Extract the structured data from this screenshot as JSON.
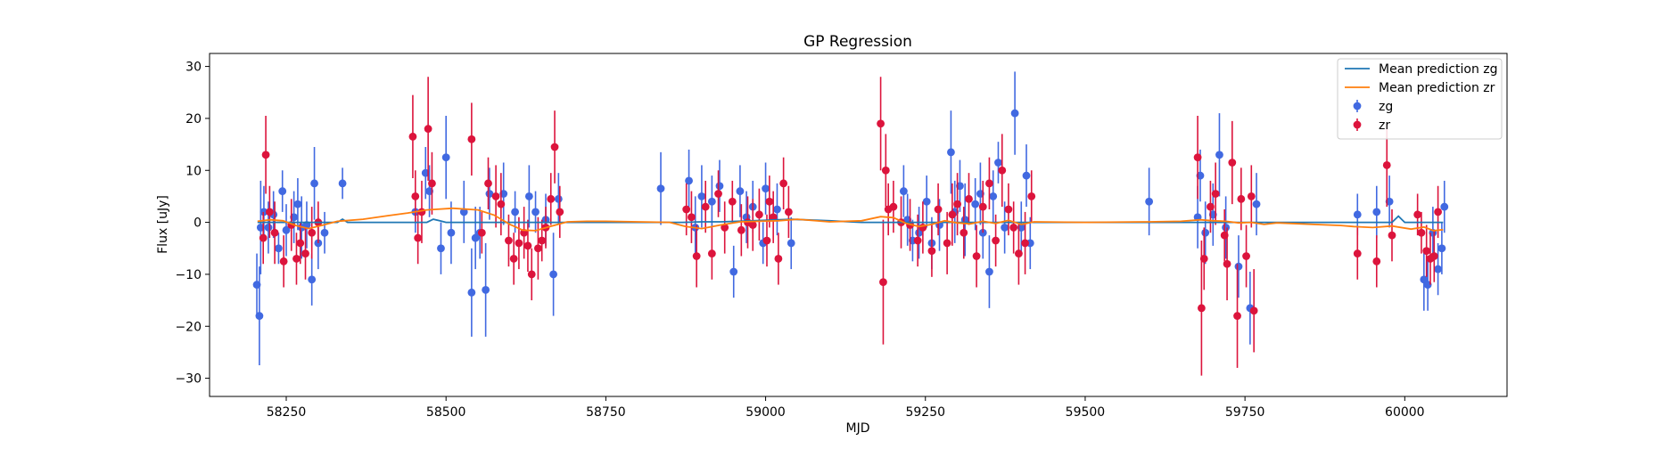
{
  "chart_data": {
    "type": "scatter",
    "title": "GP Regression",
    "xlabel": "MJD",
    "ylabel": "Flux [uJy]",
    "xlim": [
      58130,
      60160
    ],
    "ylim": [
      -33.5,
      32.5
    ],
    "x_ticks": [
      58250,
      58500,
      58750,
      59000,
      59250,
      59500,
      59750,
      60000
    ],
    "y_ticks": [
      -30,
      -20,
      -10,
      0,
      10,
      20,
      30
    ],
    "grid": false,
    "legend_position": "top-right",
    "legend": [
      {
        "label": "Mean prediction zg",
        "kind": "line",
        "color": "#1f77b4"
      },
      {
        "label": "Mean prediction zr",
        "kind": "line",
        "color": "#ff7f0e"
      },
      {
        "label": "zg",
        "kind": "errorbar",
        "color": "#4169e1"
      },
      {
        "label": "zr",
        "kind": "errorbar",
        "color": "#dc143c"
      }
    ],
    "series": [
      {
        "name": "Mean prediction zg",
        "kind": "line",
        "color": "#1f77b4",
        "x": [
          58205,
          58240,
          58280,
          58330,
          58338,
          58346,
          58400,
          58470,
          58480,
          58490,
          58500,
          58520,
          58560,
          58590,
          58620,
          58650,
          58700,
          58760,
          58820,
          58870,
          58900,
          58930,
          58980,
          59040,
          59100,
          59150,
          59200,
          59250,
          59300,
          59350,
          59420,
          59500,
          59600,
          59680,
          59720,
          59760,
          59800,
          59900,
          59980,
          59990,
          60000,
          60010,
          60060
        ],
        "y": [
          0.0,
          0.0,
          0.0,
          0.0,
          0.6,
          0.0,
          0.0,
          0.0,
          0.6,
          0.3,
          0.0,
          0.0,
          0.0,
          0.0,
          0.0,
          0.0,
          0.0,
          0.0,
          0.0,
          0.0,
          0.1,
          0.1,
          0.3,
          0.6,
          0.3,
          0.0,
          0.0,
          0.0,
          0.0,
          0.0,
          0.0,
          0.0,
          0.0,
          0.0,
          0.0,
          0.0,
          0.0,
          0.0,
          0.0,
          1.2,
          0.0,
          0.0,
          0.0
        ]
      },
      {
        "name": "Mean prediction zr",
        "kind": "line",
        "color": "#ff7f0e",
        "x": [
          58205,
          58225,
          58245,
          58265,
          58285,
          58305,
          58330,
          58370,
          58410,
          58440,
          58470,
          58510,
          58550,
          58575,
          58600,
          58620,
          58640,
          58660,
          58690,
          58720,
          58750,
          58800,
          58850,
          58875,
          58900,
          58930,
          58960,
          58990,
          59020,
          59050,
          59100,
          59150,
          59180,
          59200,
          59220,
          59240,
          59260,
          59280,
          59300,
          59320,
          59340,
          59360,
          59380,
          59400,
          59420,
          59500,
          59600,
          59650,
          59680,
          59700,
          59720,
          59740,
          59760,
          59780,
          59800,
          59900,
          59920,
          59950,
          59980,
          60010,
          60030,
          60045,
          60060
        ],
        "y": [
          0.2,
          0.5,
          0.3,
          -0.6,
          -1.2,
          -0.6,
          0.2,
          0.6,
          1.3,
          1.8,
          2.4,
          2.7,
          2.4,
          1.4,
          -0.4,
          -1.5,
          -1.6,
          -0.9,
          0.1,
          0.2,
          0.2,
          0.1,
          0.0,
          -0.8,
          -1.2,
          -0.5,
          0.1,
          0.2,
          0.3,
          0.6,
          0.1,
          0.3,
          1.1,
          0.9,
          -0.2,
          -0.8,
          -0.4,
          0.3,
          -0.1,
          -0.3,
          0.2,
          -0.2,
          0.4,
          -0.4,
          0.1,
          0.0,
          0.1,
          0.2,
          0.5,
          0.3,
          0.2,
          -0.1,
          0.0,
          -0.4,
          -0.1,
          -0.6,
          -0.8,
          -1.0,
          -0.7,
          -1.3,
          -0.9,
          -1.6,
          -1.4
        ]
      },
      {
        "name": "zg",
        "kind": "errorbar",
        "color": "#4169e1",
        "points": [
          [
            58204,
            -12.0,
            6.0
          ],
          [
            58208,
            -18.0,
            9.5
          ],
          [
            58210,
            -1.0,
            9.0
          ],
          [
            58215,
            2.0,
            5.0
          ],
          [
            58222,
            -1.0,
            5.0
          ],
          [
            58230,
            1.5,
            4.5
          ],
          [
            58238,
            -5.0,
            3.0
          ],
          [
            58244,
            6.0,
            4.0
          ],
          [
            58250,
            -1.5,
            5.0
          ],
          [
            58262,
            1.0,
            5.0
          ],
          [
            58268,
            3.5,
            5.0
          ],
          [
            58274,
            -1.0,
            6.0
          ],
          [
            58282,
            -0.5,
            4.5
          ],
          [
            58290,
            -11.0,
            5.0
          ],
          [
            58294,
            7.5,
            7.0
          ],
          [
            58300,
            -4.0,
            5.0
          ],
          [
            58310,
            -2.0,
            4.0
          ],
          [
            58338,
            7.5,
            3.0
          ],
          [
            58452,
            2.0,
            4.0
          ],
          [
            58468,
            9.5,
            5.0
          ],
          [
            58474,
            6.0,
            5.0
          ],
          [
            58492,
            -5.0,
            5.0
          ],
          [
            58500,
            12.5,
            8.0
          ],
          [
            58508,
            -2.0,
            6.0
          ],
          [
            58528,
            2.0,
            6.0
          ],
          [
            58540,
            -13.5,
            8.5
          ],
          [
            58546,
            -3.0,
            6.0
          ],
          [
            58553,
            -2.0,
            5.0
          ],
          [
            58562,
            -13.0,
            9.0
          ],
          [
            58568,
            5.5,
            5.0
          ],
          [
            58590,
            5.5,
            6.0
          ],
          [
            58608,
            2.0,
            4.0
          ],
          [
            58630,
            5.0,
            6.0
          ],
          [
            58640,
            2.0,
            4.0
          ],
          [
            58656,
            0.5,
            5.0
          ],
          [
            58668,
            -10.0,
            8.0
          ],
          [
            58676,
            4.5,
            5.0
          ],
          [
            58836,
            6.5,
            7.0
          ],
          [
            58880,
            8.0,
            6.0
          ],
          [
            58890,
            -1.0,
            6.0
          ],
          [
            58900,
            5.0,
            6.0
          ],
          [
            58916,
            4.0,
            5.0
          ],
          [
            58928,
            7.0,
            5.0
          ],
          [
            58950,
            -9.5,
            5.0
          ],
          [
            58960,
            6.0,
            5.0
          ],
          [
            58970,
            1.0,
            5.0
          ],
          [
            58980,
            3.0,
            5.0
          ],
          [
            58996,
            -4.0,
            4.0
          ],
          [
            59000,
            6.5,
            5.0
          ],
          [
            59018,
            2.5,
            5.0
          ],
          [
            59040,
            -4.0,
            5.0
          ],
          [
            59216,
            6.0,
            5.0
          ],
          [
            59222,
            0.5,
            5.0
          ],
          [
            59230,
            -3.5,
            4.0
          ],
          [
            59240,
            -2.0,
            5.0
          ],
          [
            59252,
            4.0,
            5.0
          ],
          [
            59260,
            -4.0,
            5.0
          ],
          [
            59272,
            -0.5,
            5.0
          ],
          [
            59290,
            13.5,
            8.0
          ],
          [
            59296,
            2.0,
            6.0
          ],
          [
            59304,
            7.0,
            5.0
          ],
          [
            59312,
            0.5,
            7.0
          ],
          [
            59328,
            3.5,
            5.0
          ],
          [
            59336,
            5.5,
            6.0
          ],
          [
            59340,
            -2.0,
            5.0
          ],
          [
            59350,
            -9.5,
            7.0
          ],
          [
            59356,
            5.0,
            5.0
          ],
          [
            59364,
            11.5,
            4.0
          ],
          [
            59374,
            -1.0,
            5.0
          ],
          [
            59390,
            21.0,
            8.0
          ],
          [
            59400,
            -1.0,
            5.0
          ],
          [
            59408,
            9.0,
            6.0
          ],
          [
            59414,
            -4.0,
            5.0
          ],
          [
            59600,
            4.0,
            6.5
          ],
          [
            59676,
            1.0,
            6.0
          ],
          [
            59680,
            9.0,
            5.0
          ],
          [
            59688,
            -2.0,
            6.0
          ],
          [
            59700,
            1.5,
            6.0
          ],
          [
            59710,
            13.0,
            8.0
          ],
          [
            59720,
            -1.0,
            6.0
          ],
          [
            59740,
            -8.5,
            6.0
          ],
          [
            59758,
            -16.5,
            7.0
          ],
          [
            59768,
            3.5,
            6.0
          ],
          [
            59926,
            1.5,
            4.0
          ],
          [
            59956,
            2.0,
            5.0
          ],
          [
            59976,
            4.0,
            5.0
          ],
          [
            60030,
            -11.0,
            6.0
          ],
          [
            60036,
            -12.0,
            5.0
          ],
          [
            60044,
            -2.0,
            5.0
          ],
          [
            60052,
            -9.0,
            5.0
          ],
          [
            60058,
            -5.0,
            5.0
          ],
          [
            60062,
            3.0,
            5.0
          ]
        ]
      },
      {
        "name": "zr",
        "kind": "errorbar",
        "color": "#dc143c",
        "points": [
          [
            58214,
            -3.0,
            5.0
          ],
          [
            58218,
            13.0,
            7.5
          ],
          [
            58224,
            2.0,
            5.0
          ],
          [
            58232,
            -2.0,
            6.0
          ],
          [
            58246,
            -7.5,
            5.0
          ],
          [
            58258,
            -0.5,
            5.0
          ],
          [
            58266,
            -7.0,
            5.0
          ],
          [
            58272,
            -4.0,
            4.0
          ],
          [
            58280,
            -6.0,
            5.0
          ],
          [
            58290,
            -2.0,
            5.0
          ],
          [
            58300,
            0.0,
            4.0
          ],
          [
            58448,
            16.5,
            8.0
          ],
          [
            58452,
            5.0,
            5.0
          ],
          [
            58456,
            -3.0,
            5.0
          ],
          [
            58462,
            2.0,
            6.0
          ],
          [
            58472,
            18.0,
            10.0
          ],
          [
            58478,
            7.5,
            6.0
          ],
          [
            58540,
            16.0,
            7.0
          ],
          [
            58556,
            -2.0,
            4.0
          ],
          [
            58566,
            7.5,
            5.0
          ],
          [
            58578,
            5.0,
            6.0
          ],
          [
            58586,
            3.5,
            6.0
          ],
          [
            58598,
            -3.5,
            5.0
          ],
          [
            58606,
            -7.0,
            5.0
          ],
          [
            58614,
            -4.0,
            5.0
          ],
          [
            58622,
            -2.0,
            5.0
          ],
          [
            58628,
            -4.5,
            5.0
          ],
          [
            58634,
            -10.0,
            5.0
          ],
          [
            58644,
            -5.0,
            6.0
          ],
          [
            58650,
            -3.5,
            4.0
          ],
          [
            58656,
            -1.0,
            4.0
          ],
          [
            58664,
            4.5,
            5.0
          ],
          [
            58670,
            14.5,
            7.0
          ],
          [
            58678,
            2.0,
            5.0
          ],
          [
            58876,
            2.5,
            5.0
          ],
          [
            58884,
            1.0,
            5.0
          ],
          [
            58892,
            -6.5,
            6.0
          ],
          [
            58906,
            3.0,
            5.0
          ],
          [
            58916,
            -6.0,
            5.0
          ],
          [
            58926,
            5.5,
            4.5
          ],
          [
            58936,
            -1.0,
            5.0
          ],
          [
            58948,
            4.0,
            4.0
          ],
          [
            58962,
            -1.5,
            5.0
          ],
          [
            58972,
            0.0,
            5.0
          ],
          [
            58980,
            -0.5,
            5.0
          ],
          [
            58990,
            1.5,
            5.0
          ],
          [
            59002,
            -3.5,
            5.0
          ],
          [
            59006,
            4.0,
            5.0
          ],
          [
            59012,
            1.0,
            5.0
          ],
          [
            59020,
            -7.0,
            5.0
          ],
          [
            59028,
            7.5,
            5.0
          ],
          [
            59036,
            2.0,
            5.0
          ],
          [
            59180,
            19.0,
            9.0
          ],
          [
            59184,
            -11.5,
            12.0
          ],
          [
            59188,
            10.0,
            7.0
          ],
          [
            59192,
            2.5,
            5.0
          ],
          [
            59200,
            3.0,
            5.0
          ],
          [
            59212,
            0.0,
            5.0
          ],
          [
            59226,
            -0.5,
            5.0
          ],
          [
            59238,
            -3.5,
            5.0
          ],
          [
            59246,
            -1.0,
            5.0
          ],
          [
            59260,
            -5.5,
            5.0
          ],
          [
            59270,
            2.5,
            5.0
          ],
          [
            59284,
            -4.0,
            6.0
          ],
          [
            59292,
            1.5,
            6.0
          ],
          [
            59300,
            3.5,
            6.0
          ],
          [
            59310,
            -2.0,
            5.0
          ],
          [
            59318,
            4.5,
            5.0
          ],
          [
            59330,
            -6.5,
            6.0
          ],
          [
            59340,
            3.0,
            5.0
          ],
          [
            59350,
            7.5,
            5.0
          ],
          [
            59360,
            -3.5,
            5.0
          ],
          [
            59370,
            10.0,
            7.0
          ],
          [
            59380,
            2.5,
            5.0
          ],
          [
            59388,
            -1.0,
            5.0
          ],
          [
            59396,
            -6.0,
            6.0
          ],
          [
            59406,
            -4.0,
            6.0
          ],
          [
            59416,
            5.0,
            5.0
          ],
          [
            59676,
            12.5,
            8.0
          ],
          [
            59682,
            -16.5,
            13.0
          ],
          [
            59686,
            -7.0,
            6.0
          ],
          [
            59696,
            3.0,
            5.0
          ],
          [
            59704,
            5.5,
            6.0
          ],
          [
            59718,
            -2.5,
            5.0
          ],
          [
            59722,
            -8.0,
            7.0
          ],
          [
            59730,
            11.5,
            8.0
          ],
          [
            59738,
            -18.0,
            10.0
          ],
          [
            59744,
            4.5,
            6.0
          ],
          [
            59752,
            -6.5,
            6.0
          ],
          [
            59760,
            5.0,
            6.0
          ],
          [
            59764,
            -17.0,
            8.0
          ],
          [
            59926,
            -6.0,
            5.0
          ],
          [
            59956,
            -7.5,
            5.0
          ],
          [
            59972,
            11.0,
            8.0
          ],
          [
            59980,
            -2.5,
            5.0
          ],
          [
            60020,
            1.5,
            4.0
          ],
          [
            60026,
            -2.0,
            4.0
          ],
          [
            60034,
            -5.5,
            5.0
          ],
          [
            60040,
            -7.0,
            5.0
          ],
          [
            60046,
            -6.5,
            5.0
          ],
          [
            60052,
            2.0,
            5.0
          ]
        ]
      }
    ]
  }
}
